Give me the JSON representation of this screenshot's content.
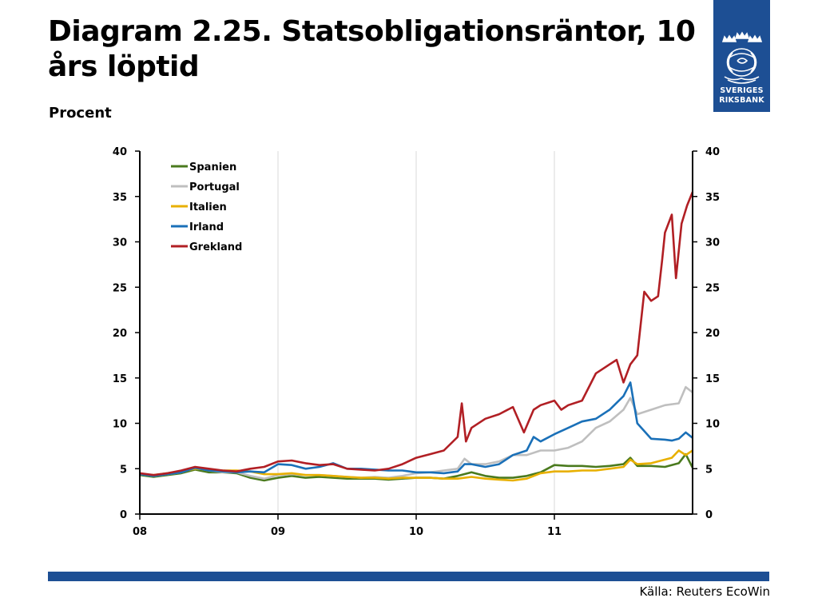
{
  "header": {
    "title": "Diagram 2.25. Statsobligationsräntor, 10 års löptid",
    "subtitle": "Procent"
  },
  "logo": {
    "line1": "SVERIGES",
    "line2": "RIKSBANK",
    "bg_color": "#1d4f94"
  },
  "footer": {
    "source": "Källa: Reuters EcoWin",
    "bar_color": "#1d4f94"
  },
  "chart_data": {
    "type": "line",
    "title": "Diagram 2.25. Statsobligationsräntor, 10 års löptid",
    "ylabel": "Procent",
    "xlabel": "",
    "xlim": [
      2008.0,
      2012.0
    ],
    "ylim": [
      0,
      40
    ],
    "yticks": [
      0,
      5,
      10,
      15,
      20,
      25,
      30,
      35,
      40
    ],
    "xticks": [
      {
        "value": 2008.0,
        "label": "08"
      },
      {
        "value": 2009.0,
        "label": "09"
      },
      {
        "value": 2010.0,
        "label": "10"
      },
      {
        "value": 2011.0,
        "label": "11"
      }
    ],
    "grid": "vertical",
    "legend_position": "top-left",
    "series": [
      {
        "name": "Spanien",
        "color": "#4a7a1e",
        "x": [
          2008.0,
          2008.1,
          2008.2,
          2008.3,
          2008.4,
          2008.5,
          2008.6,
          2008.7,
          2008.8,
          2008.9,
          2009.0,
          2009.1,
          2009.2,
          2009.3,
          2009.4,
          2009.5,
          2009.6,
          2009.7,
          2009.8,
          2009.9,
          2010.0,
          2010.1,
          2010.2,
          2010.3,
          2010.4,
          2010.5,
          2010.6,
          2010.7,
          2010.8,
          2010.9,
          2011.0,
          2011.1,
          2011.2,
          2011.3,
          2011.4,
          2011.5,
          2011.55,
          2011.6,
          2011.7,
          2011.8,
          2011.9,
          2011.95,
          2012.0
        ],
        "values": [
          4.3,
          4.1,
          4.3,
          4.5,
          4.9,
          4.6,
          4.6,
          4.5,
          4.0,
          3.7,
          4.0,
          4.2,
          4.0,
          4.1,
          4.0,
          3.9,
          3.9,
          3.9,
          3.8,
          3.9,
          4.0,
          4.0,
          3.9,
          4.2,
          4.6,
          4.2,
          4.0,
          4.0,
          4.2,
          4.6,
          5.4,
          5.3,
          5.3,
          5.2,
          5.3,
          5.5,
          6.2,
          5.3,
          5.3,
          5.2,
          5.6,
          6.6,
          5.1
        ]
      },
      {
        "name": "Portugal",
        "color": "#bfbfbf",
        "x": [
          2008.0,
          2008.1,
          2008.2,
          2008.3,
          2008.4,
          2008.5,
          2008.6,
          2008.7,
          2008.8,
          2008.9,
          2009.0,
          2009.1,
          2009.2,
          2009.3,
          2009.4,
          2009.5,
          2009.6,
          2009.7,
          2009.8,
          2009.9,
          2010.0,
          2010.1,
          2010.2,
          2010.3,
          2010.35,
          2010.4,
          2010.5,
          2010.6,
          2010.7,
          2010.8,
          2010.9,
          2011.0,
          2011.1,
          2011.2,
          2011.3,
          2011.4,
          2011.5,
          2011.55,
          2011.6,
          2011.7,
          2011.8,
          2011.9,
          2011.95,
          2012.0
        ],
        "values": [
          4.4,
          4.2,
          4.4,
          4.6,
          5.1,
          4.8,
          4.6,
          4.6,
          4.2,
          3.9,
          4.3,
          4.4,
          4.3,
          4.3,
          4.2,
          4.1,
          4.0,
          4.1,
          4.0,
          4.2,
          4.5,
          4.6,
          4.8,
          5.0,
          6.1,
          5.5,
          5.5,
          5.8,
          6.5,
          6.5,
          7.0,
          7.0,
          7.3,
          8.0,
          9.5,
          10.2,
          11.5,
          12.8,
          11.0,
          11.5,
          12.0,
          12.2,
          14.0,
          13.4
        ]
      },
      {
        "name": "Italien",
        "color": "#e8b000",
        "x": [
          2008.0,
          2008.1,
          2008.2,
          2008.3,
          2008.4,
          2008.5,
          2008.6,
          2008.7,
          2008.8,
          2008.9,
          2009.0,
          2009.1,
          2009.2,
          2009.3,
          2009.4,
          2009.5,
          2009.6,
          2009.7,
          2009.8,
          2009.9,
          2010.0,
          2010.1,
          2010.2,
          2010.3,
          2010.4,
          2010.5,
          2010.6,
          2010.7,
          2010.8,
          2010.9,
          2011.0,
          2011.1,
          2011.2,
          2011.3,
          2011.4,
          2011.5,
          2011.55,
          2011.6,
          2011.7,
          2011.8,
          2011.85,
          2011.9,
          2011.95,
          2012.0
        ],
        "values": [
          4.4,
          4.3,
          4.5,
          4.7,
          5.0,
          4.9,
          4.8,
          4.8,
          4.7,
          4.4,
          4.4,
          4.5,
          4.3,
          4.3,
          4.2,
          4.1,
          4.0,
          4.0,
          3.9,
          4.0,
          4.0,
          4.0,
          3.9,
          3.9,
          4.1,
          3.9,
          3.8,
          3.7,
          3.9,
          4.5,
          4.7,
          4.7,
          4.8,
          4.8,
          5.0,
          5.2,
          6.0,
          5.5,
          5.6,
          6.0,
          6.2,
          7.0,
          6.5,
          7.0
        ]
      },
      {
        "name": "Irland",
        "color": "#1a70b8",
        "x": [
          2008.0,
          2008.1,
          2008.2,
          2008.3,
          2008.4,
          2008.5,
          2008.6,
          2008.7,
          2008.8,
          2008.9,
          2009.0,
          2009.1,
          2009.2,
          2009.3,
          2009.4,
          2009.5,
          2009.6,
          2009.7,
          2009.8,
          2009.9,
          2010.0,
          2010.1,
          2010.2,
          2010.3,
          2010.35,
          2010.4,
          2010.5,
          2010.6,
          2010.7,
          2010.8,
          2010.85,
          2010.9,
          2011.0,
          2011.1,
          2011.2,
          2011.3,
          2011.4,
          2011.5,
          2011.55,
          2011.6,
          2011.7,
          2011.8,
          2011.85,
          2011.9,
          2011.95,
          2012.0
        ],
        "values": [
          4.4,
          4.2,
          4.4,
          4.6,
          5.1,
          4.8,
          4.7,
          4.6,
          4.7,
          4.6,
          5.5,
          5.4,
          5.0,
          5.2,
          5.6,
          5.0,
          5.0,
          4.9,
          4.8,
          4.8,
          4.6,
          4.6,
          4.5,
          4.7,
          5.5,
          5.5,
          5.2,
          5.5,
          6.5,
          7.0,
          8.5,
          8.0,
          8.8,
          9.5,
          10.2,
          10.5,
          11.5,
          13.0,
          14.5,
          10.0,
          8.3,
          8.2,
          8.1,
          8.3,
          9.0,
          8.4
        ]
      },
      {
        "name": "Grekland",
        "color": "#b11f24",
        "x": [
          2008.0,
          2008.1,
          2008.2,
          2008.3,
          2008.4,
          2008.5,
          2008.6,
          2008.7,
          2008.8,
          2008.9,
          2009.0,
          2009.1,
          2009.2,
          2009.3,
          2009.4,
          2009.5,
          2009.6,
          2009.7,
          2009.8,
          2009.9,
          2010.0,
          2010.1,
          2010.2,
          2010.3,
          2010.33,
          2010.36,
          2010.4,
          2010.5,
          2010.6,
          2010.7,
          2010.78,
          2010.85,
          2010.9,
          2011.0,
          2011.05,
          2011.1,
          2011.2,
          2011.3,
          2011.35,
          2011.4,
          2011.45,
          2011.5,
          2011.55,
          2011.6,
          2011.65,
          2011.7,
          2011.75,
          2011.78,
          2011.8,
          2011.85,
          2011.88,
          2011.92,
          2011.96,
          2012.0
        ],
        "values": [
          4.5,
          4.3,
          4.5,
          4.8,
          5.2,
          5.0,
          4.8,
          4.7,
          5.0,
          5.2,
          5.8,
          5.9,
          5.6,
          5.4,
          5.5,
          5.0,
          4.9,
          4.8,
          5.0,
          5.5,
          6.2,
          6.6,
          7.0,
          8.5,
          12.2,
          8.0,
          9.5,
          10.5,
          11.0,
          11.8,
          9.0,
          11.5,
          12.0,
          12.5,
          11.5,
          12.0,
          12.5,
          15.5,
          16.0,
          16.5,
          17.0,
          14.5,
          16.5,
          17.5,
          24.5,
          23.5,
          24.0,
          28.0,
          31.0,
          33.0,
          26.0,
          32.0,
          34.0,
          35.5
        ]
      }
    ]
  }
}
